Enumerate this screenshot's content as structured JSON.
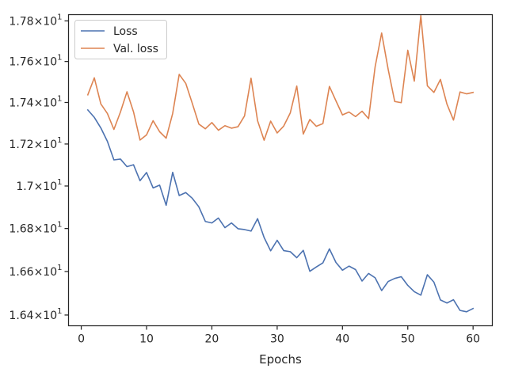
{
  "chart_data": {
    "type": "line",
    "title": "",
    "xlabel": "Epochs",
    "ylabel": "",
    "xlim": [
      -1.95,
      62.95
    ],
    "ylim": [
      16.351,
      17.831
    ],
    "x_ticks": [
      0,
      10,
      20,
      30,
      40,
      50,
      60
    ],
    "x_tick_labels": [
      "0",
      "10",
      "20",
      "30",
      "40",
      "50",
      "60"
    ],
    "y_ticks": [
      16.4,
      16.6,
      16.8,
      17.0,
      17.2,
      17.4,
      17.6,
      17.8
    ],
    "y_tick_labels": [
      {
        "mantissa": "1.64",
        "exp": "1"
      },
      {
        "mantissa": "1.66",
        "exp": "1"
      },
      {
        "mantissa": "1.68",
        "exp": "1"
      },
      {
        "mantissa": "1.7",
        "exp": "1"
      },
      {
        "mantissa": "1.72",
        "exp": "1"
      },
      {
        "mantissa": "1.74",
        "exp": "1"
      },
      {
        "mantissa": "1.76",
        "exp": "1"
      },
      {
        "mantissa": "1.78",
        "exp": "1"
      }
    ],
    "y_scale": "log",
    "grid": false,
    "legend_position": "upper-left",
    "x": [
      1,
      2,
      3,
      4,
      5,
      6,
      7,
      8,
      9,
      10,
      11,
      12,
      13,
      14,
      15,
      16,
      17,
      18,
      19,
      20,
      21,
      22,
      23,
      24,
      25,
      26,
      27,
      28,
      29,
      30,
      31,
      32,
      33,
      34,
      35,
      36,
      37,
      38,
      39,
      40,
      41,
      42,
      43,
      44,
      45,
      46,
      47,
      48,
      49,
      50,
      51,
      52,
      53,
      54,
      55,
      56,
      57,
      58,
      59,
      60
    ],
    "series": [
      {
        "name": "Loss",
        "color": "#4c72b0",
        "values": [
          17.364,
          17.328,
          17.277,
          17.213,
          17.124,
          17.128,
          17.092,
          17.101,
          17.025,
          17.064,
          16.991,
          17.004,
          16.909,
          17.065,
          16.955,
          16.969,
          16.942,
          16.902,
          16.833,
          16.826,
          16.849,
          16.804,
          16.826,
          16.799,
          16.795,
          16.788,
          16.846,
          16.758,
          16.696,
          16.745,
          16.697,
          16.692,
          16.664,
          16.698,
          16.601,
          16.621,
          16.64,
          16.705,
          16.642,
          16.606,
          16.625,
          16.609,
          16.556,
          16.591,
          16.571,
          16.512,
          16.554,
          16.568,
          16.576,
          16.536,
          16.507,
          16.491,
          16.585,
          16.551,
          16.469,
          16.455,
          16.47,
          16.421,
          16.415,
          16.43
        ]
      },
      {
        "name": "Val. loss",
        "color": "#dd8452",
        "values": [
          17.437,
          17.52,
          17.393,
          17.347,
          17.27,
          17.354,
          17.452,
          17.355,
          17.219,
          17.244,
          17.312,
          17.259,
          17.228,
          17.347,
          17.537,
          17.493,
          17.396,
          17.296,
          17.273,
          17.303,
          17.266,
          17.288,
          17.276,
          17.283,
          17.335,
          17.518,
          17.312,
          17.218,
          17.31,
          17.253,
          17.286,
          17.349,
          17.48,
          17.248,
          17.318,
          17.285,
          17.298,
          17.478,
          17.408,
          17.34,
          17.354,
          17.332,
          17.358,
          17.322,
          17.574,
          17.74,
          17.561,
          17.405,
          17.399,
          17.655,
          17.504,
          17.827,
          17.481,
          17.449,
          17.512,
          17.392,
          17.315,
          17.451,
          17.442,
          17.449
        ]
      }
    ]
  }
}
